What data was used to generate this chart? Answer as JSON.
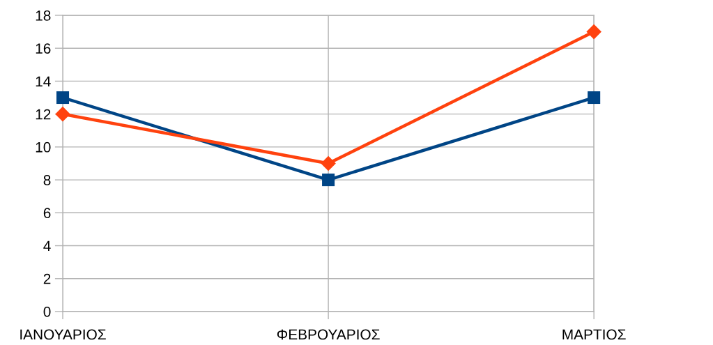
{
  "chart_data": {
    "type": "line",
    "categories": [
      "ΙΑΝΟΥΑΡΙΟΣ",
      "ΦΕΒΡΟΥΑΡΙΟΣ",
      "ΜΑΡΤΙΟΣ"
    ],
    "series": [
      {
        "color": "#004586",
        "marker": "square",
        "values": [
          13,
          8,
          13
        ]
      },
      {
        "color": "#ff420e",
        "marker": "diamond",
        "values": [
          12,
          9,
          17
        ]
      }
    ],
    "ylim": [
      0,
      18
    ],
    "yticks": [
      0,
      2,
      4,
      6,
      8,
      10,
      12,
      14,
      16,
      18
    ],
    "grid": true,
    "line_style": "solid"
  }
}
